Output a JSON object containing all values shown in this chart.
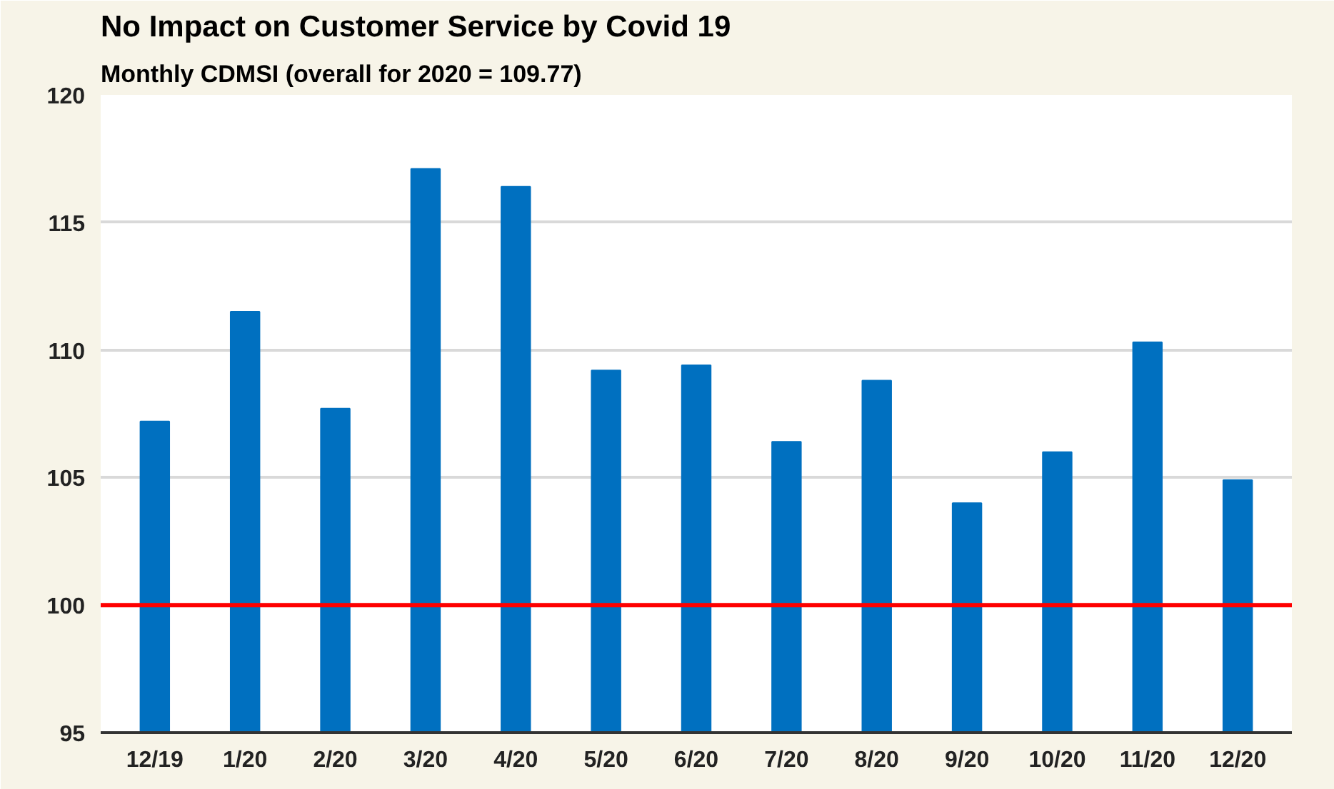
{
  "chart_data": {
    "type": "bar",
    "title": "No Impact on Customer Service by Covid 19",
    "subtitle": "Monthly CDMSI (overall for 2020 = 109.77)",
    "categories": [
      "12/19",
      "1/20",
      "2/20",
      "3/20",
      "4/20",
      "5/20",
      "6/20",
      "7/20",
      "8/20",
      "9/20",
      "10/20",
      "11/20",
      "12/20"
    ],
    "values": [
      107.2,
      111.5,
      107.7,
      117.1,
      116.4,
      109.2,
      109.4,
      106.4,
      108.8,
      104.0,
      106.0,
      110.3,
      104.9
    ],
    "color": "#0070c0",
    "ylim": [
      95,
      120
    ],
    "yticks": [
      95,
      100,
      105,
      110,
      115,
      120
    ],
    "grid": "y",
    "ref_lines": [
      {
        "axis": "y",
        "value": 100,
        "color": "#ff0000"
      }
    ]
  }
}
